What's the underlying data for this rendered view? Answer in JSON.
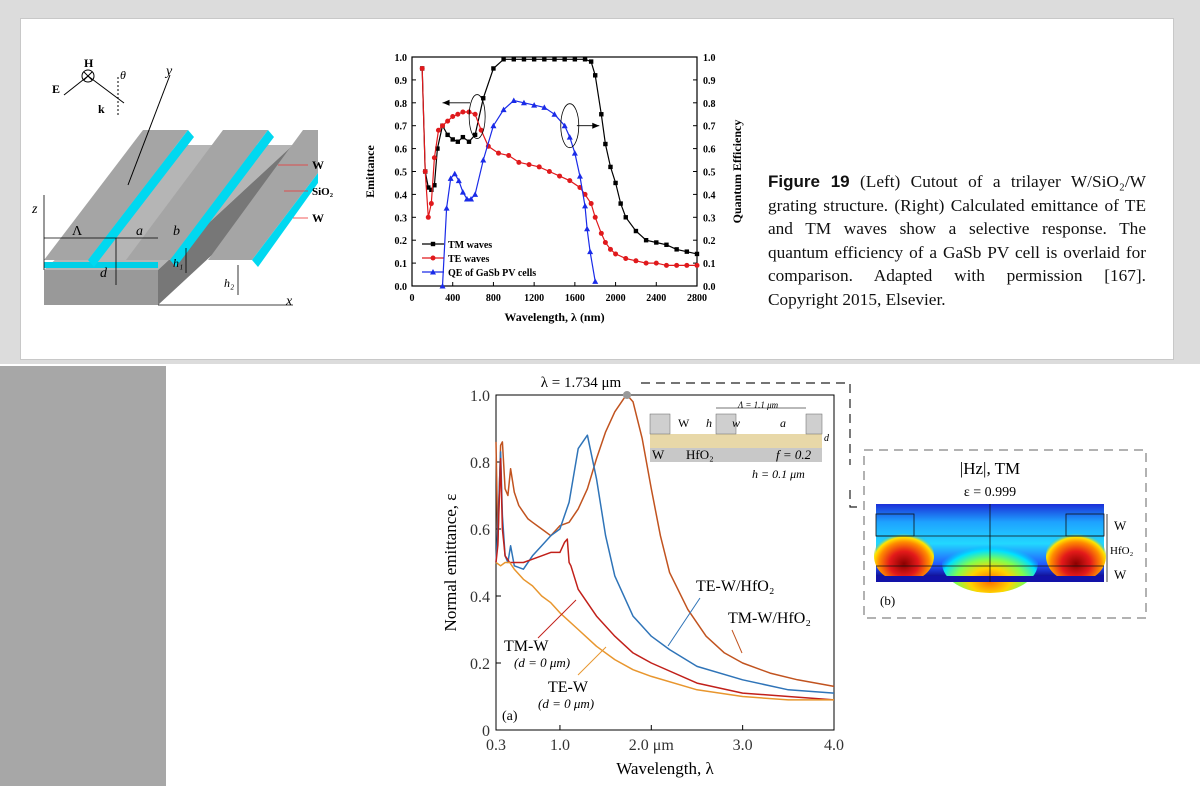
{
  "top_figure": {
    "diagram": {
      "H": "H",
      "theta": "θ",
      "E": "E",
      "k": "k",
      "y": "y",
      "z": "z",
      "x": "x",
      "Lambda": "Λ",
      "a": "a",
      "b": "b",
      "d": "d",
      "h1": "h₁",
      "h2": "h₂",
      "layer_top": "W",
      "layer_mid": "SiO₂",
      "layer_bottom": "W"
    },
    "caption_label": "Figure 19",
    "caption_text": "(Left) Cutout of a trilayer W/SiO₂/W grating structure. (Right) Calculated emittance of TE and TM waves show a selective response. The quantum efficiency of a GaSb PV cell is overlaid for comparison. Adapted with permission [167]. Copyright 2015, Elsevier."
  },
  "chart_data": [
    {
      "type": "line",
      "title": "",
      "xlabel": "Wavelength, λ (nm)",
      "ylabel": "Emittance",
      "y2label": "Quantum Efficiency",
      "xlim": [
        0,
        2800
      ],
      "ylim": [
        0,
        1.0
      ],
      "x_ticks": [
        "0",
        "400",
        "800",
        "1200",
        "1600",
        "2000",
        "2400",
        "2800"
      ],
      "y_ticks": [
        "0.0",
        "0.1",
        "0.2",
        "0.3",
        "0.4",
        "0.5",
        "0.6",
        "0.7",
        "0.8",
        "0.9",
        "1.0"
      ],
      "legend_position": "bottom-left",
      "series": [
        {
          "name": "TM waves",
          "color": "#000000",
          "marker": "square",
          "x": [
            100,
            130,
            160,
            190,
            220,
            250,
            300,
            350,
            400,
            450,
            500,
            560,
            620,
            700,
            800,
            900,
            1000,
            1100,
            1200,
            1300,
            1400,
            1500,
            1600,
            1700,
            1760,
            1800,
            1860,
            1900,
            1950,
            2000,
            2050,
            2100,
            2200,
            2300,
            2400,
            2500,
            2600,
            2700,
            2800
          ],
          "y": [
            0.95,
            0.5,
            0.43,
            0.42,
            0.44,
            0.6,
            0.7,
            0.66,
            0.64,
            0.63,
            0.65,
            0.63,
            0.66,
            0.82,
            0.95,
            0.99,
            0.99,
            0.99,
            0.99,
            0.99,
            0.99,
            0.99,
            0.99,
            0.99,
            0.98,
            0.92,
            0.75,
            0.62,
            0.52,
            0.45,
            0.36,
            0.3,
            0.24,
            0.2,
            0.19,
            0.18,
            0.16,
            0.15,
            0.14
          ]
        },
        {
          "name": "TE waves",
          "color": "#e0191c",
          "marker": "circle",
          "x": [
            100,
            130,
            160,
            190,
            220,
            260,
            300,
            350,
            400,
            450,
            500,
            560,
            620,
            680,
            750,
            850,
            950,
            1050,
            1150,
            1250,
            1350,
            1450,
            1550,
            1650,
            1700,
            1760,
            1800,
            1860,
            1900,
            1950,
            2000,
            2100,
            2200,
            2300,
            2400,
            2500,
            2600,
            2700,
            2800
          ],
          "y": [
            0.95,
            0.5,
            0.3,
            0.36,
            0.56,
            0.68,
            0.7,
            0.72,
            0.74,
            0.75,
            0.76,
            0.76,
            0.75,
            0.68,
            0.61,
            0.58,
            0.57,
            0.54,
            0.53,
            0.52,
            0.5,
            0.48,
            0.46,
            0.43,
            0.4,
            0.36,
            0.3,
            0.23,
            0.19,
            0.16,
            0.14,
            0.12,
            0.11,
            0.1,
            0.1,
            0.09,
            0.09,
            0.09,
            0.09
          ]
        },
        {
          "name": "QE of GaSb PV cells",
          "color": "#1a2be8",
          "marker": "triangle",
          "x": [
            300,
            340,
            380,
            420,
            460,
            500,
            540,
            580,
            620,
            700,
            800,
            900,
            1000,
            1100,
            1200,
            1300,
            1400,
            1500,
            1550,
            1600,
            1650,
            1700,
            1720,
            1750,
            1800
          ],
          "y": [
            0.0,
            0.34,
            0.47,
            0.49,
            0.46,
            0.41,
            0.38,
            0.38,
            0.4,
            0.55,
            0.7,
            0.77,
            0.81,
            0.8,
            0.79,
            0.78,
            0.75,
            0.7,
            0.65,
            0.58,
            0.48,
            0.35,
            0.25,
            0.15,
            0.02
          ]
        }
      ]
    },
    {
      "type": "line",
      "title": "",
      "xlabel": "Wavelength, λ",
      "ylabel": "Normal emittance, ε",
      "xlim": [
        0.3,
        4.0
      ],
      "ylim": [
        0,
        1.0
      ],
      "x_ticks": [
        "0.3",
        "1.0",
        "2.0 μm",
        "3.0",
        "4.0"
      ],
      "y_ticks": [
        "0",
        "0.2",
        "0.4",
        "0.6",
        "0.8",
        "1.0"
      ],
      "panel_label": "(a)",
      "peak_annotation": "λ = 1.734 μm",
      "curve_labels": {
        "tm_w": "TM-W",
        "tm_w_sub": "(d = 0 μm)",
        "te_w": "TE-W",
        "te_w_sub": "(d = 0 μm)",
        "te_w_hfo2": "TE-W/HfO₂",
        "tm_w_hfo2": "TM-W/HfO₂"
      },
      "inset": {
        "w_left": "W",
        "h": "h",
        "w": "w",
        "a": "a",
        "period": "Λ = 1.1 μm",
        "d": "d",
        "w_bottom": "W",
        "hfo2": "HfO₂",
        "fill_factor": "f = 0.2",
        "thickness": "h = 0.1 μm"
      },
      "series": [
        {
          "name": "TM-W/HfO₂",
          "color": "#c1531f",
          "x": [
            0.3,
            0.32,
            0.35,
            0.37,
            0.4,
            0.43,
            0.46,
            0.5,
            0.55,
            0.6,
            0.65,
            0.7,
            0.8,
            0.9,
            1.0,
            1.1,
            1.2,
            1.3,
            1.4,
            1.5,
            1.6,
            1.7,
            1.734,
            1.8,
            1.9,
            2.0,
            2.1,
            2.2,
            2.4,
            2.6,
            2.8,
            3.0,
            3.3,
            3.6,
            4.0
          ],
          "y": [
            0.86,
            0.55,
            0.85,
            0.86,
            0.72,
            0.7,
            0.78,
            0.71,
            0.67,
            0.65,
            0.63,
            0.62,
            0.6,
            0.58,
            0.61,
            0.62,
            0.66,
            0.72,
            0.81,
            0.89,
            0.95,
            0.99,
            1.0,
            0.98,
            0.87,
            0.72,
            0.58,
            0.47,
            0.36,
            0.28,
            0.23,
            0.2,
            0.17,
            0.15,
            0.13
          ]
        },
        {
          "name": "TE-W/HfO₂",
          "color": "#2f74b8",
          "x": [
            0.3,
            0.32,
            0.35,
            0.37,
            0.4,
            0.43,
            0.46,
            0.5,
            0.6,
            0.7,
            0.8,
            0.9,
            1.0,
            1.1,
            1.2,
            1.3,
            1.4,
            1.5,
            1.6,
            1.8,
            2.0,
            2.2,
            2.5,
            3.0,
            3.5,
            4.0
          ],
          "y": [
            0.5,
            0.6,
            0.83,
            0.64,
            0.52,
            0.5,
            0.55,
            0.49,
            0.48,
            0.52,
            0.55,
            0.58,
            0.6,
            0.68,
            0.84,
            0.88,
            0.75,
            0.58,
            0.46,
            0.34,
            0.28,
            0.24,
            0.19,
            0.15,
            0.12,
            0.11
          ]
        },
        {
          "name": "TM-W",
          "color": "#c1201a",
          "x": [
            0.3,
            0.32,
            0.35,
            0.37,
            0.4,
            0.45,
            0.5,
            0.6,
            0.7,
            0.8,
            0.9,
            1.0,
            1.05,
            1.08,
            1.1,
            1.12,
            1.2,
            1.4,
            1.6,
            1.8,
            2.0,
            2.5,
            3.0,
            3.5,
            4.0
          ],
          "y": [
            0.5,
            0.55,
            0.81,
            0.6,
            0.52,
            0.5,
            0.5,
            0.5,
            0.51,
            0.52,
            0.53,
            0.53,
            0.56,
            0.57,
            0.5,
            0.49,
            0.42,
            0.34,
            0.28,
            0.23,
            0.2,
            0.14,
            0.11,
            0.1,
            0.09
          ]
        },
        {
          "name": "TE-W",
          "color": "#e8962e",
          "x": [
            0.3,
            0.35,
            0.4,
            0.45,
            0.5,
            0.6,
            0.7,
            0.8,
            0.9,
            1.0,
            1.2,
            1.4,
            1.6,
            1.8,
            2.0,
            2.5,
            3.0,
            3.5,
            4.0
          ],
          "y": [
            0.5,
            0.49,
            0.5,
            0.5,
            0.48,
            0.45,
            0.43,
            0.4,
            0.38,
            0.35,
            0.3,
            0.25,
            0.21,
            0.18,
            0.16,
            0.12,
            0.1,
            0.09,
            0.09
          ]
        }
      ]
    }
  ],
  "field_map": {
    "title": "|Hz|, TM",
    "subtitle": "ε = 0.999",
    "label_w_top": "W",
    "label_hfo2": "HfO₂",
    "label_w_bottom": "W",
    "panel_label": "(b)"
  }
}
